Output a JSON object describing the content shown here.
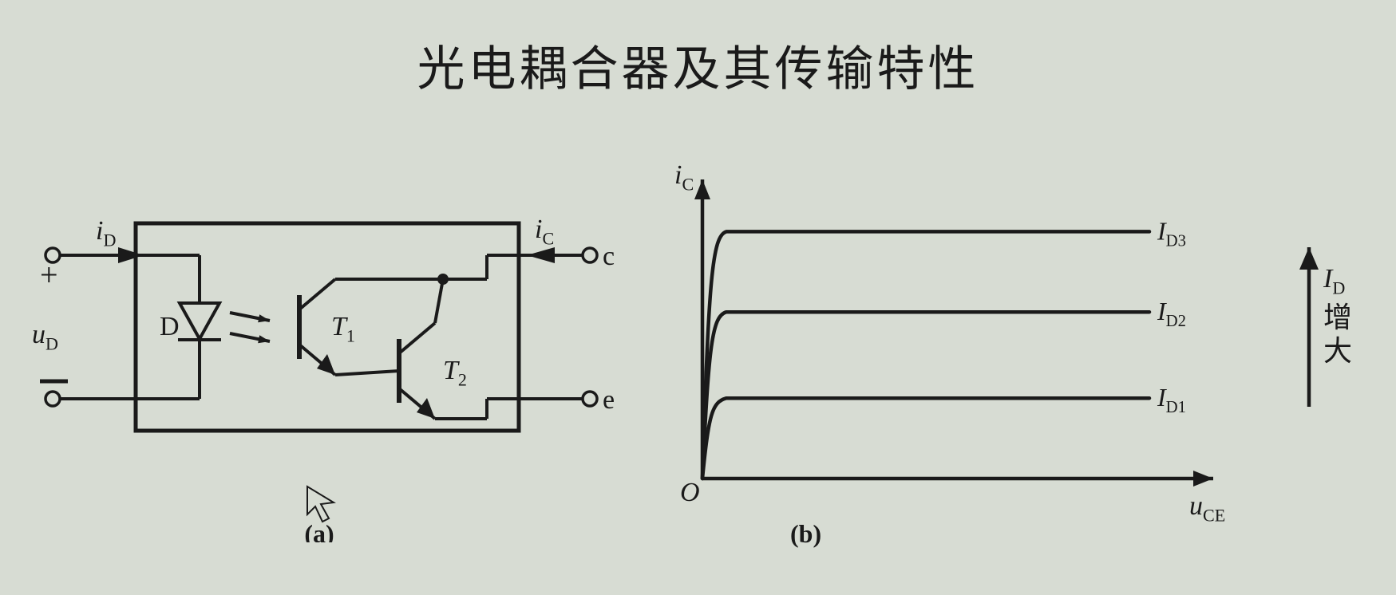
{
  "page": {
    "background_color": "#d7dcd3",
    "stroke_color": "#1a1a1a",
    "text_color": "#1a1a1a"
  },
  "title": {
    "text": "光电耦合器及其传输特性",
    "fontsize": 60
  },
  "panel_a": {
    "sublabel": "(a)",
    "labels": {
      "iD": "i",
      "iD_sub": "D",
      "uD": "u",
      "uD_sub": "D",
      "D": "D",
      "T1": "T",
      "T1_sub": "1",
      "T2": "T",
      "T2_sub": "2",
      "iC": "i",
      "iC_sub": "C",
      "c": "c",
      "e": "e",
      "plus": "+",
      "minus": "−"
    },
    "stroke_width_outer": 5,
    "stroke_width_inner": 4
  },
  "panel_b": {
    "sublabel": "(b)",
    "axis": {
      "xlabel": "u",
      "xlabel_sub": "CE",
      "ylabel": "i",
      "ylabel_sub": "C",
      "origin": "O"
    },
    "curves": [
      {
        "label": "I",
        "label_sub": "D1",
        "plateau_y": 0.28
      },
      {
        "label": "I",
        "label_sub": "D2",
        "plateau_y": 0.58
      },
      {
        "label": "I",
        "label_sub": "D3",
        "plateau_y": 0.86
      }
    ],
    "side_arrow": {
      "label": "I",
      "label_sub": "D",
      "label_cn": "增大"
    },
    "stroke_width": 4.5
  }
}
